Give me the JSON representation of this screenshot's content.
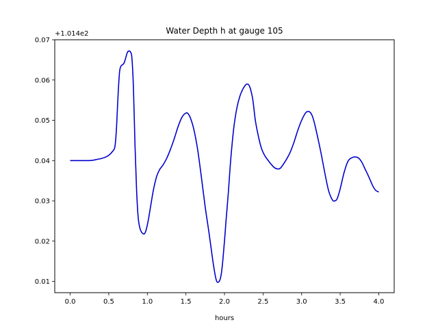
{
  "chart_data": {
    "type": "line",
    "title": "Water Depth h at gauge 105",
    "xlabel": "hours",
    "ylabel": "",
    "offset_text": "+1.014e2",
    "xlim": [
      -0.2,
      4.2
    ],
    "ylim": [
      0.0072,
      0.07
    ],
    "x_ticks": [
      0.0,
      0.5,
      1.0,
      1.5,
      2.0,
      2.5,
      3.0,
      3.5,
      4.0
    ],
    "x_tick_labels": [
      "0.0",
      "0.5",
      "1.0",
      "1.5",
      "2.0",
      "2.5",
      "3.0",
      "3.5",
      "4.0"
    ],
    "y_ticks": [
      0.01,
      0.02,
      0.03,
      0.04,
      0.05,
      0.06,
      0.07
    ],
    "y_tick_labels": [
      "0.01",
      "0.02",
      "0.03",
      "0.04",
      "0.05",
      "0.06",
      "0.07"
    ],
    "grid": false,
    "color": "#0000cc",
    "series": [
      {
        "x": [
          0.0,
          0.1,
          0.2,
          0.25,
          0.3,
          0.35,
          0.4,
          0.45,
          0.5,
          0.55,
          0.58,
          0.6,
          0.62,
          0.64,
          0.66,
          0.68,
          0.7,
          0.72,
          0.74,
          0.76,
          0.78,
          0.8,
          0.82,
          0.84,
          0.86,
          0.88,
          0.9,
          0.92,
          0.94,
          0.96,
          0.98,
          1.0,
          1.02,
          1.05,
          1.08,
          1.12,
          1.16,
          1.2,
          1.25,
          1.3,
          1.35,
          1.4,
          1.45,
          1.5,
          1.53,
          1.56,
          1.6,
          1.65,
          1.7,
          1.75,
          1.8,
          1.85,
          1.88,
          1.9,
          1.92,
          1.94,
          1.96,
          1.98,
          2.0,
          2.02,
          2.05,
          2.08,
          2.12,
          2.16,
          2.2,
          2.24,
          2.28,
          2.31,
          2.33,
          2.35,
          2.37,
          2.4,
          2.44,
          2.48,
          2.52,
          2.56,
          2.6,
          2.65,
          2.7,
          2.73,
          2.76,
          2.8,
          2.85,
          2.9,
          2.95,
          3.0,
          3.05,
          3.08,
          3.11,
          3.14,
          3.17,
          3.2,
          3.25,
          3.3,
          3.35,
          3.4,
          3.43,
          3.46,
          3.5,
          3.55,
          3.6,
          3.65,
          3.7,
          3.74,
          3.78,
          3.82,
          3.87,
          3.92,
          3.96,
          4.0
        ],
        "y": [
          0.04,
          0.04,
          0.04,
          0.04,
          0.0401,
          0.0403,
          0.0405,
          0.0408,
          0.0413,
          0.0423,
          0.0435,
          0.048,
          0.056,
          0.062,
          0.0635,
          0.0638,
          0.0643,
          0.0655,
          0.0668,
          0.0672,
          0.067,
          0.0655,
          0.058,
          0.044,
          0.033,
          0.0262,
          0.0235,
          0.0224,
          0.0219,
          0.0218,
          0.0225,
          0.024,
          0.026,
          0.0295,
          0.0328,
          0.036,
          0.0378,
          0.0388,
          0.0405,
          0.0428,
          0.0455,
          0.0485,
          0.0508,
          0.0518,
          0.0516,
          0.0505,
          0.048,
          0.043,
          0.036,
          0.0285,
          0.022,
          0.015,
          0.0115,
          0.01,
          0.0098,
          0.0103,
          0.012,
          0.0155,
          0.02,
          0.025,
          0.032,
          0.04,
          0.048,
          0.053,
          0.056,
          0.0578,
          0.0589,
          0.0589,
          0.0582,
          0.0568,
          0.0548,
          0.05,
          0.046,
          0.043,
          0.0413,
          0.0402,
          0.0392,
          0.0382,
          0.0379,
          0.0382,
          0.039,
          0.0402,
          0.042,
          0.0445,
          0.0475,
          0.05,
          0.0518,
          0.0522,
          0.052,
          0.051,
          0.049,
          0.0465,
          0.042,
          0.037,
          0.0325,
          0.0302,
          0.03,
          0.0305,
          0.033,
          0.037,
          0.0398,
          0.0407,
          0.0409,
          0.0406,
          0.0396,
          0.038,
          0.036,
          0.0338,
          0.0326,
          0.0322
        ]
      }
    ]
  }
}
